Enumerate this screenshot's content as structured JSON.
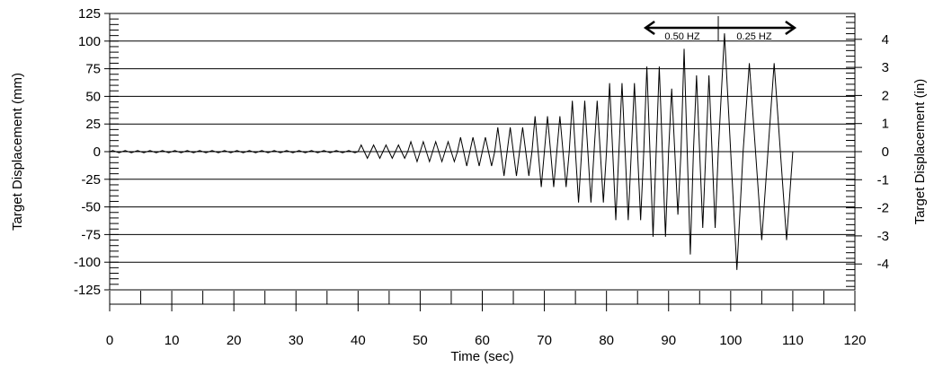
{
  "chart_data": {
    "type": "line",
    "xlabel": "Time (sec)",
    "ylabel": "Target Displacement (mm)",
    "ylabel_right": "Target Displacement (in)",
    "xlim": [
      0,
      120
    ],
    "ylim": [
      -125,
      125
    ],
    "ylim_right_in": [
      -4.921,
      4.921
    ],
    "x_ticks": [
      0,
      10,
      20,
      30,
      40,
      50,
      60,
      70,
      80,
      90,
      100,
      110,
      120
    ],
    "y_ticks": [
      125,
      100,
      75,
      50,
      25,
      0,
      -25,
      -50,
      -75,
      -100,
      -125
    ],
    "y_ticks_right": [
      4,
      3,
      2,
      1,
      0,
      -1,
      -2,
      -3,
      -4
    ],
    "grid": "horizontal",
    "series": [
      {
        "color": "#000000",
        "cycles": [
          {
            "t_start": 0,
            "period": 2,
            "amplitude": 1,
            "count": 20
          },
          {
            "t_start": 40,
            "period": 2,
            "amplitude": 6,
            "count": 4
          },
          {
            "t_start": 48,
            "period": 2,
            "amplitude": 9,
            "count": 4
          },
          {
            "t_start": 56,
            "period": 2,
            "amplitude": 13,
            "count": 3
          },
          {
            "t_start": 62,
            "period": 2,
            "amplitude": 22,
            "count": 3
          },
          {
            "t_start": 68,
            "period": 2,
            "amplitude": 32,
            "count": 3
          },
          {
            "t_start": 74,
            "period": 2,
            "amplitude": 46,
            "count": 3
          },
          {
            "t_start": 80,
            "period": 2,
            "amplitude": 62,
            "count": 3
          },
          {
            "t_start": 86,
            "period": 2,
            "amplitude": 77,
            "count": 2
          },
          {
            "t_start": 90,
            "period": 2,
            "amplitude": 57,
            "count": 1
          },
          {
            "t_start": 92,
            "period": 2,
            "amplitude": 93,
            "count": 1
          },
          {
            "t_start": 94,
            "period": 2,
            "amplitude": 69,
            "count": 2
          },
          {
            "t_start": 98,
            "period": 4,
            "amplitude": 107,
            "count": 1
          },
          {
            "t_start": 102,
            "period": 4,
            "amplitude": 80,
            "count": 2
          }
        ]
      }
    ],
    "annotations": {
      "left_label": "0.50 HZ",
      "right_label": "0.25 HZ",
      "arrow_from_x": 86,
      "arrow_to_x": 110,
      "divider_x": 98
    }
  }
}
